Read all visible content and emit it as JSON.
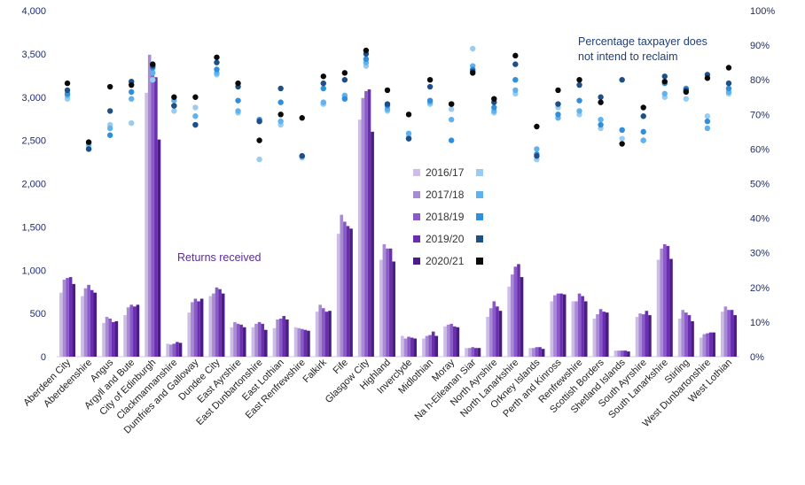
{
  "chart_data": {
    "type": "bar",
    "categories": [
      "Aberdeen City",
      "Aberdeenshire",
      "Angus",
      "Argyll and Bute",
      "City of Edinburgh",
      "Clackmannanshire",
      "Dumfries and Galloway",
      "Dundee City",
      "East Ayrshire",
      "East Dunbartonshire",
      "East Lothian",
      "East Renfrewshire",
      "Falkirk",
      "Fife",
      "Glasgow City",
      "Highland",
      "Inverclyde",
      "Midlothian",
      "Moray",
      "Na h-Eileanan Siar",
      "North Ayrshire",
      "North Lanarkshire",
      "Orkney Islands",
      "Perth and Kinross",
      "Renfrewshire",
      "Scottish Borders",
      "Shetland Islands",
      "South Ayrshire",
      "South Lanarkshire",
      "Stirling",
      "West Dunbartonshire",
      "West Lothian"
    ],
    "ylim": [
      0,
      4000
    ],
    "y_ticks": [
      "0",
      "500",
      "1,000",
      "1,500",
      "2,000",
      "2,500",
      "3,000",
      "3,500",
      "4,000"
    ],
    "y2lim": [
      0,
      100
    ],
    "y2_ticks": [
      "0%",
      "10%",
      "20%",
      "30%",
      "40%",
      "50%",
      "60%",
      "70%",
      "80%",
      "90%",
      "100%"
    ],
    "series": [
      {
        "name": "2016/17",
        "color": "#cdbde6",
        "values": [
          740,
          700,
          390,
          480,
          3050,
          150,
          510,
          700,
          340,
          340,
          330,
          340,
          520,
          1420,
          2740,
          1120,
          240,
          210,
          350,
          100,
          460,
          810,
          100,
          640,
          640,
          440,
          70,
          460,
          1120,
          440,
          220,
          520
        ]
      },
      {
        "name": "2017/18",
        "color": "#a88bd4",
        "values": [
          890,
          790,
          460,
          570,
          3490,
          140,
          630,
          730,
          400,
          380,
          430,
          330,
          600,
          1640,
          2990,
          1300,
          210,
          240,
          370,
          100,
          560,
          950,
          100,
          710,
          640,
          490,
          70,
          500,
          1250,
          540,
          260,
          580
        ]
      },
      {
        "name": "2018/19",
        "color": "#8a5ac8",
        "values": [
          910,
          830,
          440,
          600,
          3390,
          150,
          670,
          800,
          380,
          400,
          440,
          320,
          560,
          1560,
          3070,
          1250,
          230,
          250,
          380,
          110,
          640,
          1040,
          110,
          730,
          730,
          550,
          70,
          490,
          1300,
          510,
          270,
          540
        ]
      },
      {
        "name": "2019/20",
        "color": "#6a2fb0",
        "values": [
          920,
          770,
          400,
          580,
          3230,
          170,
          640,
          780,
          370,
          380,
          470,
          310,
          520,
          1510,
          3090,
          1250,
          220,
          290,
          350,
          100,
          580,
          1070,
          110,
          730,
          700,
          520,
          70,
          530,
          1280,
          480,
          280,
          540
        ]
      },
      {
        "name": "2020/21",
        "color": "#4b1d84",
        "values": [
          840,
          740,
          410,
          600,
          2510,
          160,
          670,
          730,
          340,
          310,
          430,
          300,
          530,
          1480,
          2600,
          1100,
          210,
          240,
          340,
          100,
          530,
          920,
          90,
          720,
          640,
          510,
          60,
          480,
          1130,
          410,
          280,
          480
        ]
      }
    ],
    "pct_series": [
      {
        "name": "2016/17",
        "color": "#99ccf0",
        "values": [
          74.5,
          61,
          67,
          67.5,
          80,
          71,
          72,
          81.5,
          70.5,
          57,
          67,
          57.5,
          73,
          75,
          84,
          71,
          63.5,
          73,
          71.5,
          89,
          70.5,
          76,
          57,
          72,
          70,
          66,
          63,
          62.5,
          75,
          74.5,
          69.5,
          76
        ]
      },
      {
        "name": "2017/18",
        "color": "#5fb2ee",
        "values": [
          75.5,
          61.5,
          66,
          74.5,
          82,
          74,
          69.5,
          82,
          71,
          68,
          68,
          58,
          73.5,
          75.5,
          85,
          71.5,
          64.5,
          73.5,
          68.5,
          84,
          71,
          77,
          60,
          69,
          71,
          68.5,
          65.5,
          62.5,
          76,
          77,
          66,
          76.5
        ]
      },
      {
        "name": "2018/19",
        "color": "#2f8fdb",
        "values": [
          76,
          60,
          64,
          76.5,
          83.5,
          72.5,
          67,
          83,
          74,
          68.5,
          73.5,
          58,
          77.5,
          74.5,
          86,
          72.5,
          63,
          74,
          62.5,
          83,
          72,
          80,
          58.5,
          70,
          74,
          67,
          65.5,
          65,
          79,
          77.5,
          68,
          77.5
        ]
      },
      {
        "name": "2019/20",
        "color": "#1e4f86",
        "values": [
          77,
          60,
          71,
          79.5,
          84,
          72.5,
          67,
          85,
          78,
          68,
          77.5,
          58,
          79,
          80,
          87.5,
          73,
          63,
          78,
          73,
          82.5,
          73.5,
          84.5,
          58,
          73,
          78.5,
          75,
          80,
          69.5,
          81,
          77,
          81.5,
          79
        ]
      },
      {
        "name": "2020/21",
        "color": "#0a0a0a",
        "values": [
          79,
          62,
          78,
          78.5,
          84.5,
          75,
          75,
          86.5,
          79,
          62.5,
          70,
          69,
          81,
          82,
          88.5,
          77,
          70,
          80,
          73,
          82,
          74.5,
          87,
          66.5,
          77,
          80,
          73.5,
          61.5,
          72,
          79.5,
          76.5,
          80.5,
          83.5
        ]
      }
    ],
    "annotations": {
      "bars_label": "Returns received",
      "pct_label_line1": "Percentage taxpayer does",
      "pct_label_line2": "not intend to reclaim"
    },
    "legend_position": "center"
  }
}
